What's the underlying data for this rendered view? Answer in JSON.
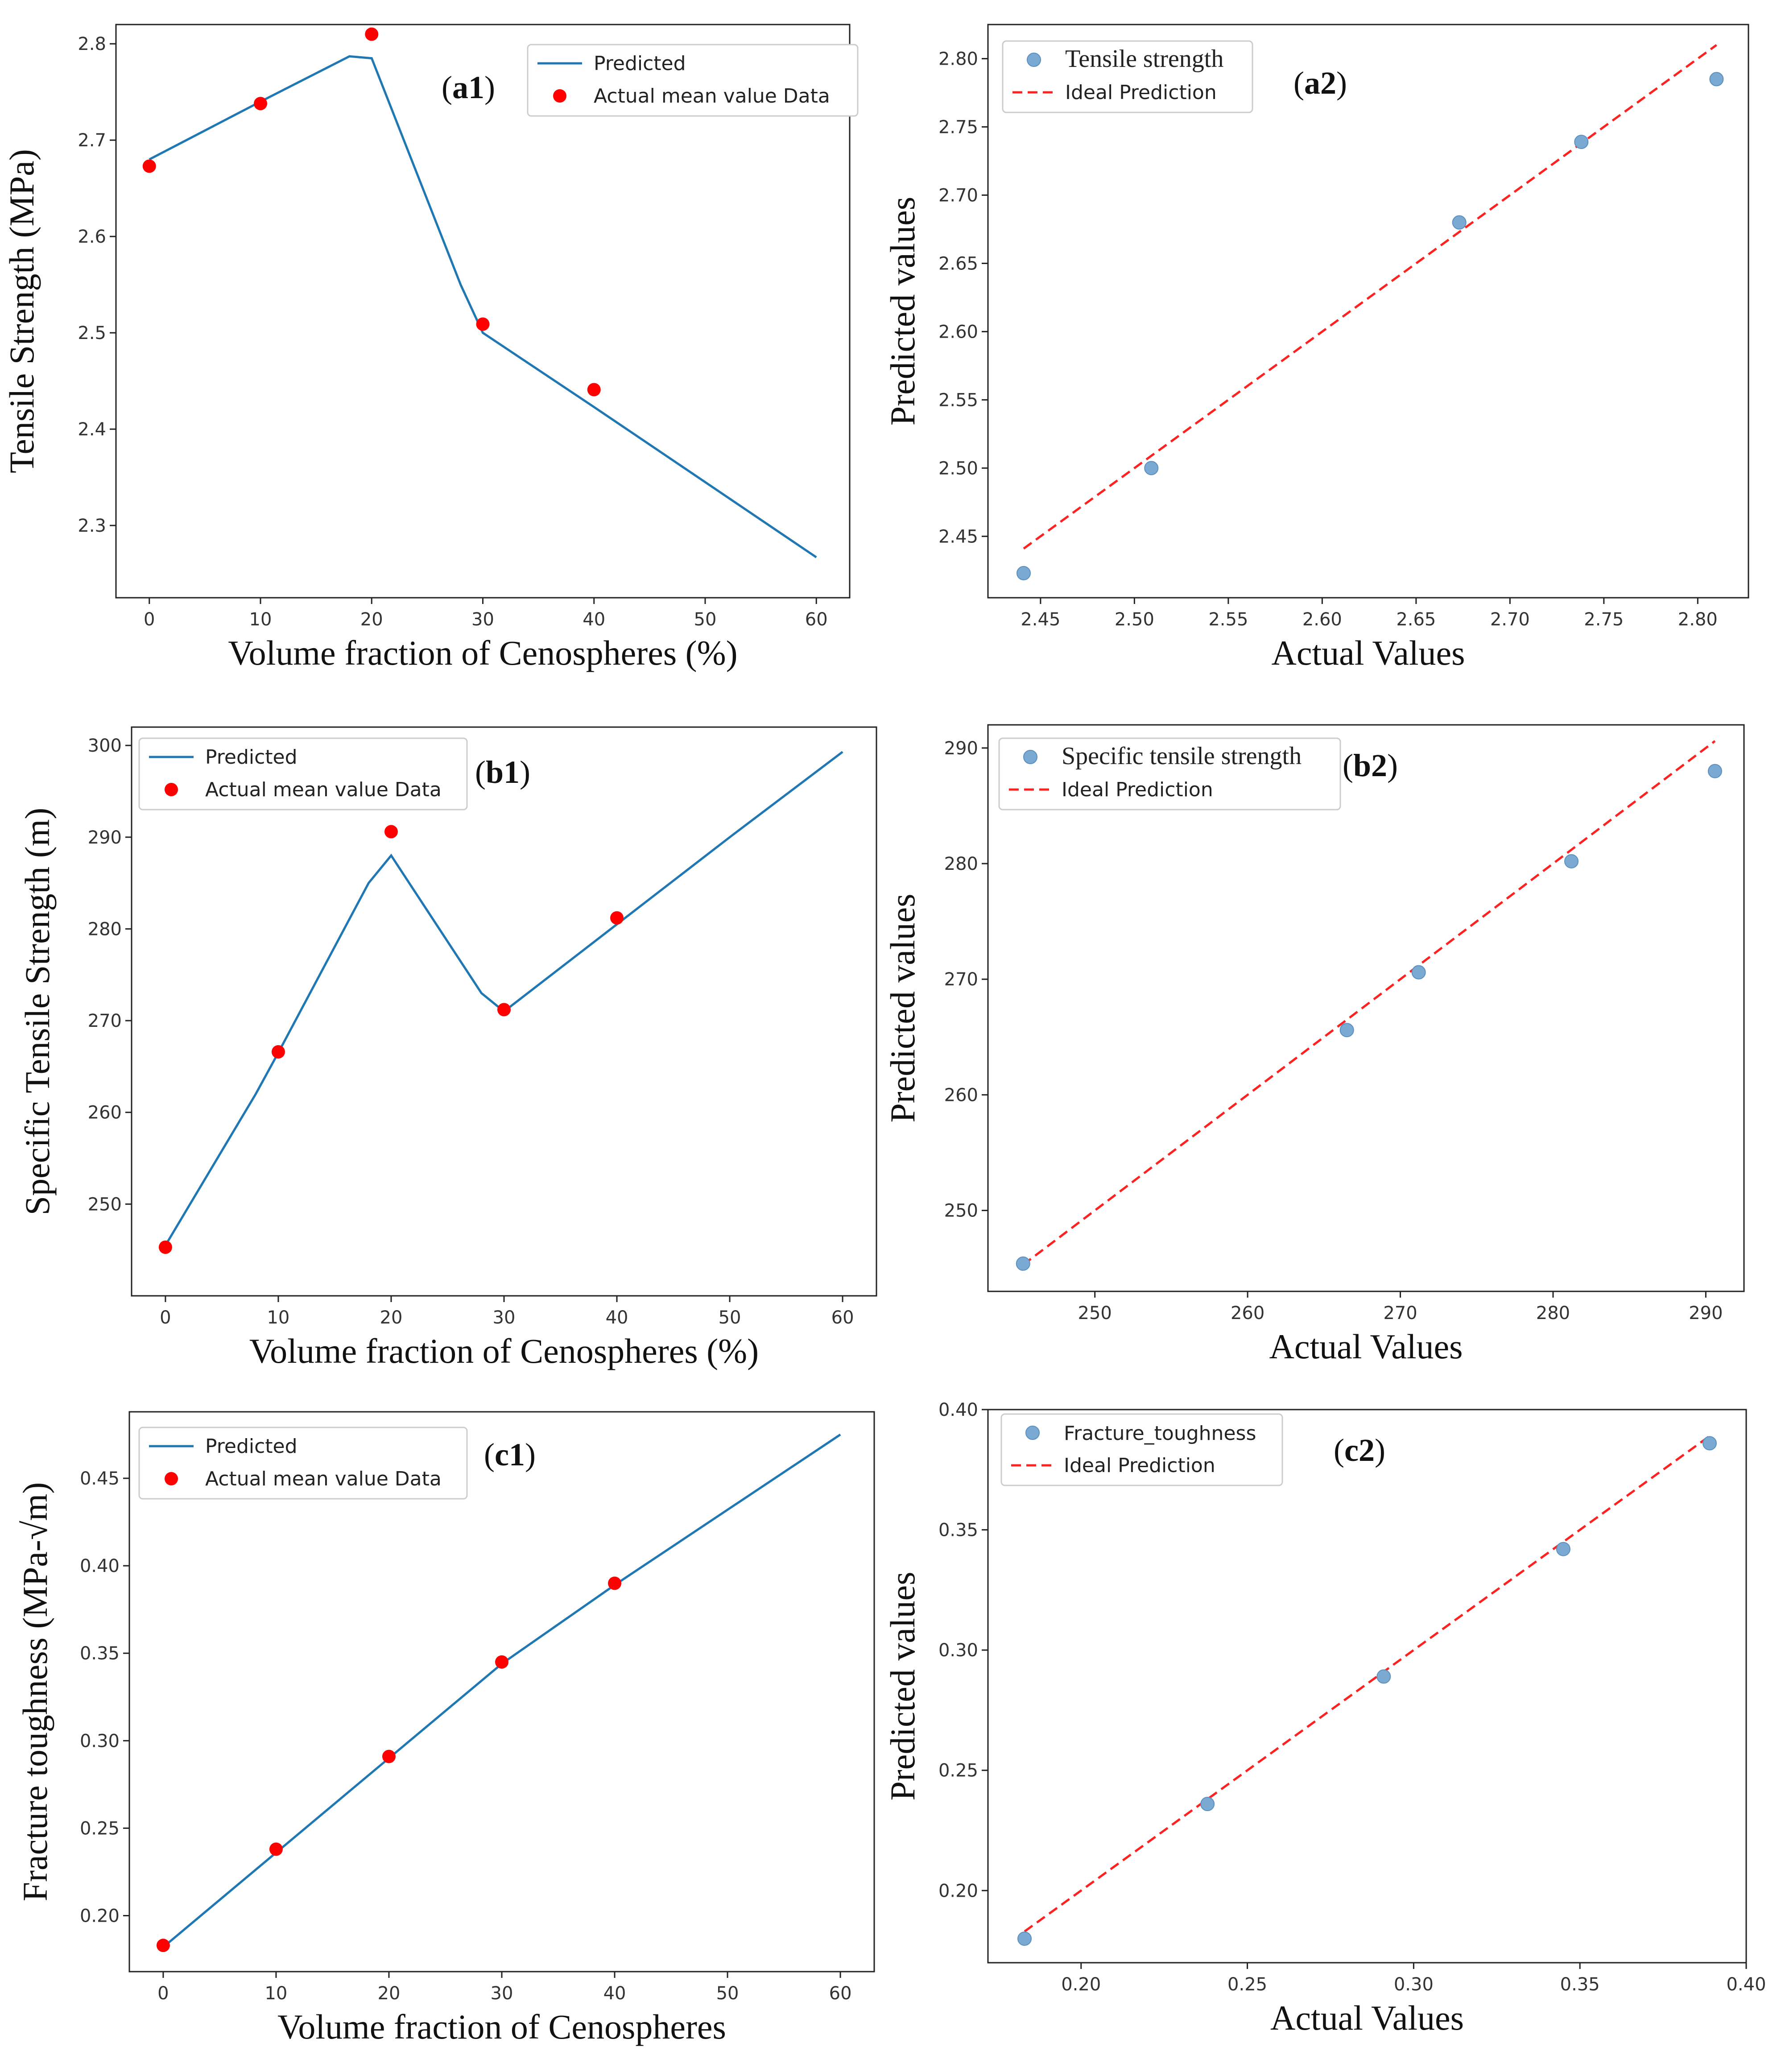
{
  "colors": {
    "line": "#1f77b4",
    "actual": "#ff0000",
    "scatter": "#7aaad2",
    "ideal": "#ff2020"
  },
  "chart_data": [
    {
      "id": "a1",
      "type": "line+scatter",
      "panel_label": "a1",
      "xlabel": "Volume fraction of Cenospheres (%)",
      "ylabel": "Tensile Strength (MPa)",
      "xlim": [
        -3,
        63
      ],
      "ylim": [
        2.225,
        2.82
      ],
      "xticks": [
        0,
        10,
        20,
        30,
        40,
        50,
        60
      ],
      "xtick_labels": [
        "0",
        "10",
        "20",
        "30",
        "40",
        "50",
        "60"
      ],
      "yticks": [
        2.3,
        2.4,
        2.5,
        2.6,
        2.7,
        2.8
      ],
      "ytick_labels": [
        "2.3",
        "2.4",
        "2.5",
        "2.6",
        "2.7",
        "2.8"
      ],
      "legend": {
        "position": "top-right",
        "line_label": "Predicted",
        "scatter_label": "Actual mean value Data"
      },
      "line_series": {
        "name": "Predicted",
        "x": [
          0,
          10,
          18,
          20,
          28,
          30,
          40,
          50,
          60
        ],
        "y": [
          2.68,
          2.74,
          2.787,
          2.785,
          2.55,
          2.5,
          2.423,
          2.345,
          2.267
        ]
      },
      "scatter_series": {
        "name": "Actual mean value Data",
        "x": [
          0,
          10,
          20,
          30,
          40
        ],
        "y": [
          2.673,
          2.738,
          2.81,
          2.509,
          2.441
        ]
      }
    },
    {
      "id": "a2",
      "type": "parity",
      "panel_label": "a2",
      "xlabel": "Actual Values",
      "ylabel": "Predicted values",
      "xlim": [
        2.422,
        2.827
      ],
      "ylim": [
        2.405,
        2.825
      ],
      "xticks": [
        2.45,
        2.5,
        2.55,
        2.6,
        2.65,
        2.7,
        2.75,
        2.8
      ],
      "xtick_labels": [
        "2.45",
        "2.50",
        "2.55",
        "2.60",
        "2.65",
        "2.70",
        "2.75",
        "2.80"
      ],
      "yticks": [
        2.45,
        2.5,
        2.55,
        2.6,
        2.65,
        2.7,
        2.75,
        2.8
      ],
      "ytick_labels": [
        "2.45",
        "2.50",
        "2.55",
        "2.60",
        "2.65",
        "2.70",
        "2.75",
        "2.80"
      ],
      "legend": {
        "position": "top-left",
        "scatter_label": "Tensile strength",
        "line_label": "Ideal Prediction"
      },
      "ideal_line": [
        2.441,
        2.81
      ],
      "points": {
        "x": [
          2.441,
          2.509,
          2.673,
          2.738,
          2.81
        ],
        "y": [
          2.423,
          2.5,
          2.68,
          2.739,
          2.785
        ]
      }
    },
    {
      "id": "b1",
      "type": "line+scatter",
      "panel_label": "b1",
      "xlabel": "Volume fraction of Cenospheres (%)",
      "ylabel": "Specific Tensile Strength (m)",
      "xlim": [
        -3,
        63
      ],
      "ylim": [
        240,
        302
      ],
      "xticks": [
        0,
        10,
        20,
        30,
        40,
        50,
        60
      ],
      "xtick_labels": [
        "0",
        "10",
        "20",
        "30",
        "40",
        "50",
        "60"
      ],
      "yticks": [
        250,
        260,
        270,
        280,
        290,
        300
      ],
      "ytick_labels": [
        "250",
        "260",
        "270",
        "280",
        "290",
        "300"
      ],
      "legend": {
        "position": "top-left",
        "line_label": "Predicted",
        "scatter_label": "Actual mean value Data"
      },
      "line_series": {
        "name": "Predicted",
        "x": [
          0,
          8,
          10,
          18,
          20,
          28,
          30,
          40,
          50,
          60
        ],
        "y": [
          245.5,
          262,
          266.5,
          285,
          288,
          273,
          271,
          280.5,
          290,
          299.3
        ]
      },
      "scatter_series": {
        "name": "Actual mean value Data",
        "x": [
          0,
          10,
          20,
          30,
          40
        ],
        "y": [
          245.3,
          266.6,
          290.6,
          271.2,
          281.2
        ]
      }
    },
    {
      "id": "b2",
      "type": "parity",
      "panel_label": "b2",
      "xlabel": "Actual Values",
      "ylabel": "Predicted values",
      "xlim": [
        243,
        292.5
      ],
      "ylim": [
        243,
        292
      ],
      "xticks": [
        250,
        260,
        270,
        280,
        290
      ],
      "xtick_labels": [
        "250",
        "260",
        "270",
        "280",
        "290"
      ],
      "yticks": [
        250,
        260,
        270,
        280,
        290
      ],
      "ytick_labels": [
        "250",
        "260",
        "270",
        "280",
        "290"
      ],
      "legend": {
        "position": "top-left",
        "scatter_label": "Specific tensile strength",
        "line_label": "Ideal Prediction"
      },
      "ideal_line": [
        245.3,
        290.6
      ],
      "points": {
        "x": [
          245.3,
          266.5,
          271.2,
          281.2,
          290.6
        ],
        "y": [
          245.4,
          265.6,
          270.6,
          280.2,
          288
        ]
      }
    },
    {
      "id": "c1",
      "type": "line+scatter",
      "panel_label": "c1",
      "xlabel": "Volume   fraction   of   Cenospheres",
      "ylabel": "Fracture toughness (MPa-√m)",
      "xlim": [
        -3,
        63
      ],
      "ylim": [
        0.168,
        0.488
      ],
      "xticks": [
        0,
        10,
        20,
        30,
        40,
        50,
        60
      ],
      "xtick_labels": [
        "0",
        "10",
        "20",
        "30",
        "40",
        "50",
        "60"
      ],
      "yticks": [
        0.2,
        0.25,
        0.3,
        0.35,
        0.4,
        0.45
      ],
      "ytick_labels": [
        "0.20",
        "0.25",
        "0.30",
        "0.35",
        "0.40",
        "0.45"
      ],
      "legend": {
        "position": "top-left",
        "line_label": "Predicted",
        "scatter_label": "Actual mean value Data"
      },
      "line_series": {
        "name": "Predicted",
        "x": [
          0,
          10,
          20,
          30,
          40,
          50,
          60
        ],
        "y": [
          0.182,
          0.236,
          0.29,
          0.344,
          0.389,
          0.432,
          0.475
        ]
      },
      "scatter_series": {
        "name": "Actual mean value Data",
        "x": [
          0,
          10,
          20,
          30,
          40
        ],
        "y": [
          0.183,
          0.238,
          0.291,
          0.345,
          0.39
        ]
      }
    },
    {
      "id": "c2",
      "type": "parity",
      "panel_label": "c2",
      "xlabel": "Actual Values",
      "ylabel": "Predicted values",
      "xlim": [
        0.172,
        0.4
      ],
      "ylim": [
        0.17,
        0.4
      ],
      "xticks": [
        0.2,
        0.25,
        0.3,
        0.35,
        0.4
      ],
      "xtick_labels": [
        "0.20",
        "0.25",
        "0.30",
        "0.35",
        "0.40"
      ],
      "yticks": [
        0.2,
        0.25,
        0.3,
        0.35,
        0.4
      ],
      "ytick_labels": [
        "0.20",
        "0.25",
        "0.30",
        "0.35",
        "0.40"
      ],
      "legend": {
        "position": "top-left",
        "scatter_label": "Fracture_toughness",
        "line_label": "Ideal Prediction"
      },
      "ideal_line": [
        0.183,
        0.389
      ],
      "points": {
        "x": [
          0.183,
          0.238,
          0.291,
          0.345,
          0.389
        ],
        "y": [
          0.18,
          0.236,
          0.289,
          0.342,
          0.386
        ]
      }
    }
  ]
}
